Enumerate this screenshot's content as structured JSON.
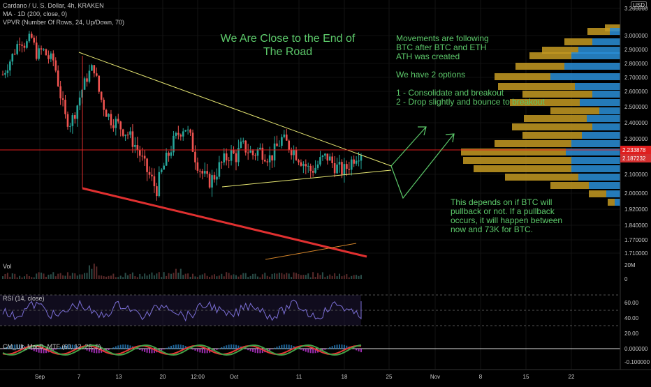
{
  "header": {
    "symbol_line": "Cardano / U. S. Dollar, 4h, KRAKEN",
    "ma_line": "MA · 1D (200, close, 0)",
    "vpvr_line": "VPVR (Number Of Rows, 24, Up/Down, 70)",
    "currency_badge": "USD"
  },
  "annotations": {
    "title_line1": "We Are Close to the End of",
    "title_line2": "The Road",
    "note1_line1": "Movements are following",
    "note1_line2": "BTC after BTC and ETH",
    "note1_line3": "ATH was created",
    "note2": "We have 2 options",
    "option1": "1 - Consolidate and breakout",
    "option2": "2 - Drop slightly and bounce to breakout",
    "note3_line1": "This depends on if BTC will",
    "note3_line2": "pullback or not. If a pullback",
    "note3_line3": "occurs, it will happen between",
    "note3_line4": "now and 73K for BTC."
  },
  "panels": {
    "volume_label": "Vol",
    "rsi_label": "RSI (14, close)",
    "macd_label": "CM_Ult_MacD_MTF (60, 12, 26, 9)"
  },
  "colors": {
    "up": "#26a69a",
    "down": "#ef5350",
    "wedge": "#e6e672",
    "support": "#e03030",
    "price_line": "#e01e1e",
    "arrow": "#5cc96a",
    "vp_up": "#2a8fd8",
    "vp_down": "#c49a22",
    "rsi": "#7b6fd6",
    "text": "#5cc96a"
  },
  "chart_data": {
    "type": "candlestick",
    "title": "Cardano / U. S. Dollar, 4h, KRAKEN",
    "price_axis": {
      "ticks": [
        "3.200000",
        "3.000000",
        "2.900000",
        "2.800000",
        "2.700000",
        "2.600000",
        "2.500000",
        "2.400000",
        "2.300000",
        "2.100000",
        "2.000000",
        "1.920000",
        "1.840000",
        "1.770000",
        "1.710000"
      ],
      "current_price": "2.233878",
      "ma_value": "2.187232"
    },
    "time_axis": [
      "Sep",
      "7",
      "13",
      "20",
      "12:00",
      "Oct",
      "11",
      "18",
      "25",
      "Nov",
      "8",
      "15",
      "22"
    ],
    "volume_axis": [
      "20M",
      "0"
    ],
    "rsi_axis": [
      "60.00",
      "40.00",
      "20.00"
    ],
    "macd_axis": [
      "0.000000",
      "-0.100000"
    ],
    "price_series_approx": [
      2.72,
      2.8,
      2.88,
      2.98,
      2.93,
      2.99,
      2.86,
      2.9,
      2.84,
      2.82,
      2.6,
      2.43,
      2.4,
      2.5,
      2.62,
      2.72,
      2.78,
      2.58,
      2.48,
      2.42,
      2.4,
      2.36,
      2.33,
      2.28,
      2.22,
      2.14,
      2.08,
      2.02,
      2.12,
      2.2,
      2.28,
      2.34,
      2.38,
      2.3,
      2.18,
      2.11,
      2.06,
      2.08,
      2.14,
      2.18,
      2.22,
      2.2,
      2.26,
      2.24,
      2.21,
      2.24,
      2.22,
      2.19,
      2.24,
      2.3,
      2.27,
      2.24,
      2.2,
      2.16,
      2.12,
      2.14,
      2.18,
      2.2,
      2.16,
      2.13,
      2.12,
      2.16,
      2.21,
      2.23
    ]
  }
}
